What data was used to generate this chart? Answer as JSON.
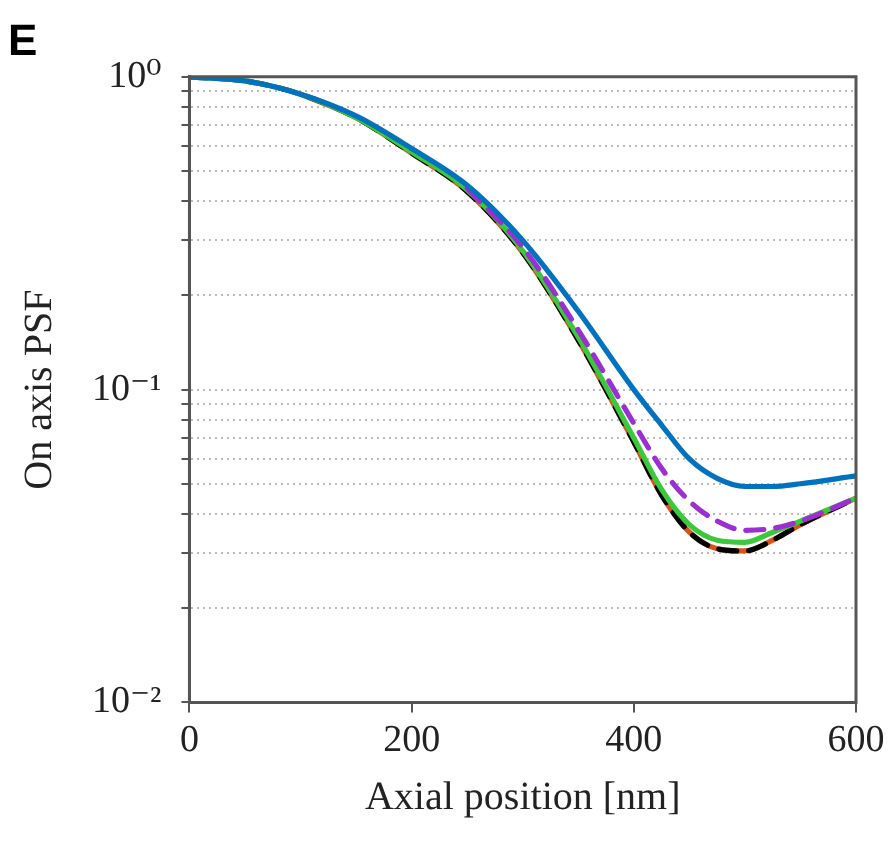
{
  "chart_data": {
    "type": "line",
    "title": "E",
    "xlabel": "Axial position [nm]",
    "ylabel": "On axis PSF",
    "x": [
      0,
      50,
      100,
      150,
      200,
      250,
      300,
      350,
      400,
      425,
      450,
      475,
      500,
      525,
      550,
      600
    ],
    "series": [
      {
        "color": "#d95319",
        "line_style": "solid",
        "values": [
          null,
          null,
          0.88,
          0.74,
          0.57,
          0.43,
          0.274,
          0.144,
          0.068,
          0.046,
          0.035,
          0.031,
          0.0305,
          0.033,
          0.037,
          0.045
        ]
      },
      {
        "color": "#000000",
        "line_style": "dashed",
        "values": [
          1,
          0.97,
          0.88,
          0.74,
          0.57,
          0.43,
          0.274,
          0.144,
          0.068,
          0.046,
          0.035,
          0.031,
          0.0305,
          0.033,
          0.037,
          0.045
        ]
      },
      {
        "color": "#3cc83c",
        "line_style": "solid",
        "values": [
          1,
          0.97,
          0.88,
          0.74,
          0.575,
          0.435,
          0.278,
          0.147,
          0.07,
          0.048,
          0.037,
          0.033,
          0.0325,
          0.035,
          0.038,
          0.045
        ]
      },
      {
        "color": "#9b30d0",
        "line_style": "dashed",
        "values": [
          null,
          null,
          null,
          null,
          null,
          0.44,
          0.285,
          0.155,
          0.078,
          0.056,
          0.044,
          0.038,
          0.0355,
          0.036,
          0.038,
          0.045
        ]
      },
      {
        "color": "#0072bd",
        "line_style": "solid",
        "values": [
          1,
          0.97,
          0.88,
          0.75,
          0.59,
          0.45,
          0.3,
          0.178,
          0.1,
          0.077,
          0.06,
          0.052,
          0.049,
          0.049,
          0.05,
          0.053
        ]
      }
    ],
    "xlim": [
      0,
      600
    ],
    "xticks": [
      0,
      200,
      400,
      600
    ],
    "ylim": [
      0.01,
      1
    ],
    "log": "y",
    "yticks": [
      {
        "value": 0.01,
        "label": "10⁻²"
      },
      {
        "value": 0.02,
        "label": null
      },
      {
        "value": 0.03,
        "label": null
      },
      {
        "value": 0.04,
        "label": null
      },
      {
        "value": 0.05,
        "label": null
      },
      {
        "value": 0.06,
        "label": null
      },
      {
        "value": 0.07,
        "label": null
      },
      {
        "value": 0.08,
        "label": null
      },
      {
        "value": 0.09,
        "label": null
      },
      {
        "value": 0.1,
        "label": "10⁻¹"
      },
      {
        "value": 0.2,
        "label": null
      },
      {
        "value": 0.3,
        "label": null
      },
      {
        "value": 0.4,
        "label": null
      },
      {
        "value": 0.5,
        "label": null
      },
      {
        "value": 0.6,
        "label": null
      },
      {
        "value": 0.7,
        "label": null
      },
      {
        "value": 0.8,
        "label": null
      },
      {
        "value": 0.9,
        "label": null
      },
      {
        "value": 1,
        "label": "10⁰"
      }
    ],
    "grid": "y",
    "legend": false,
    "marker": "none"
  }
}
